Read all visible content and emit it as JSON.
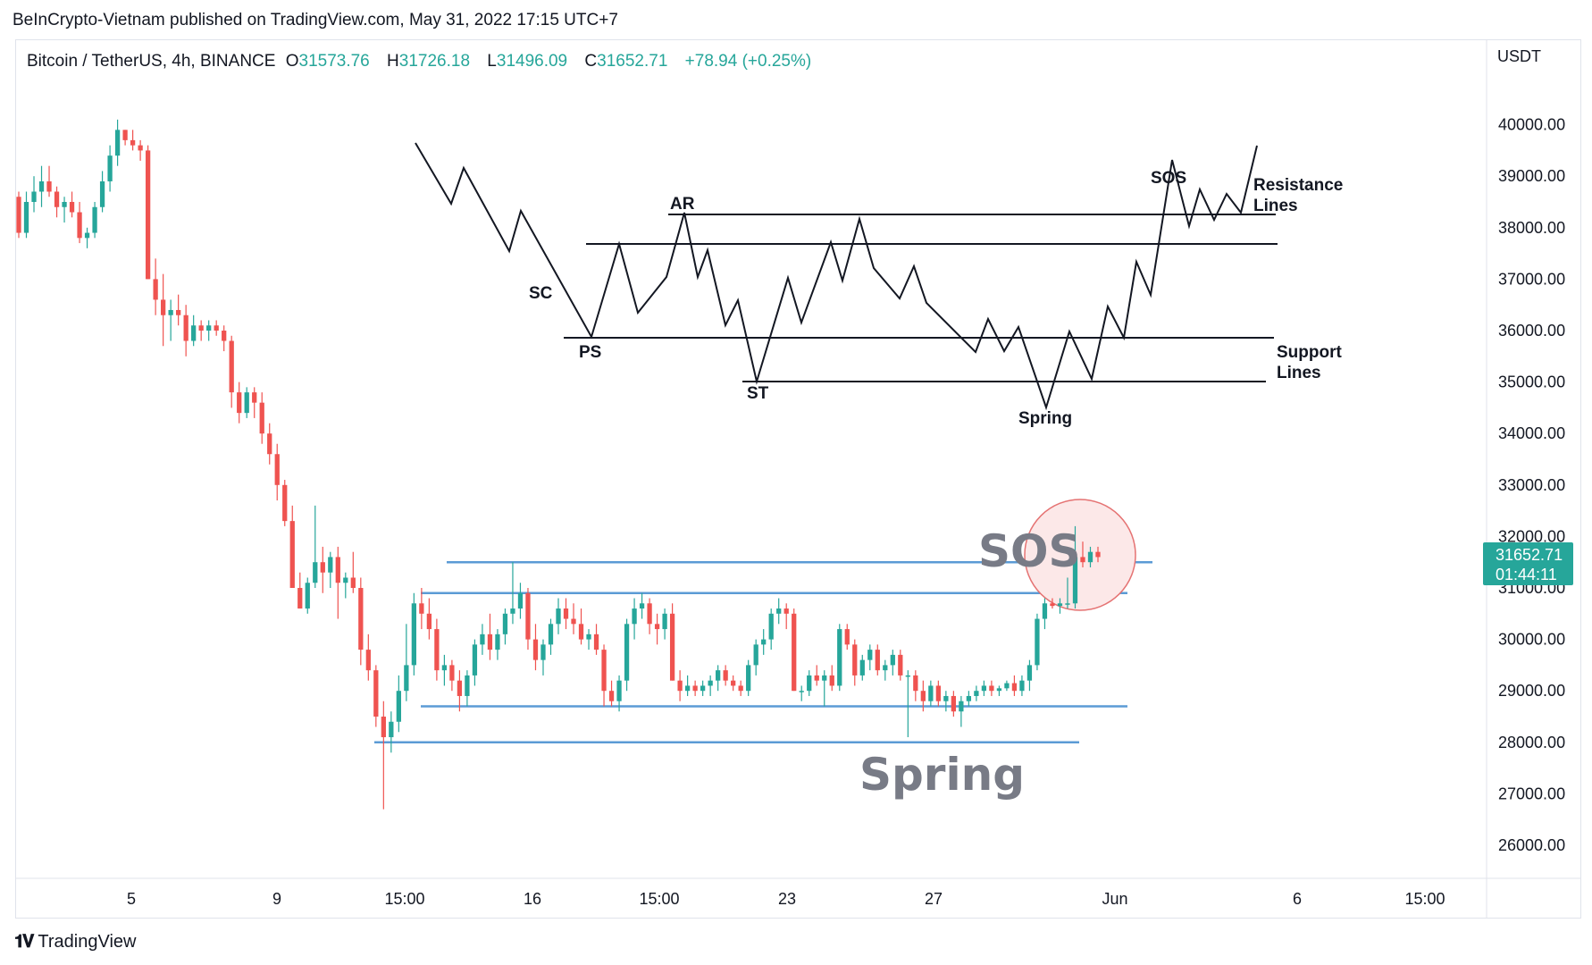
{
  "publisher": "BeInCrypto-Vietnam published on TradingView.com, May 31, 2022 17:15 UTC+7",
  "legend": {
    "symbol": "Bitcoin / TetherUS, 4h, BINANCE",
    "open_label": "O",
    "open": "31573.76",
    "high_label": "H",
    "high": "31726.18",
    "low_label": "L",
    "low": "31496.09",
    "close_label": "C",
    "close": "31652.71",
    "change": "+78.94 (+0.25%)"
  },
  "currency": "USDT",
  "price_tag": {
    "price": "31652.71",
    "countdown": "01:44:11"
  },
  "footer": {
    "brand": "TradingView",
    "logo": "tradingview-logo-icon"
  },
  "colors": {
    "up": "#26a69a",
    "down": "#ef5350",
    "range_line": "#5b9bd5",
    "circle_fill": "#fce8e8",
    "circle_stroke": "#e57373",
    "tag": "#26a69a"
  },
  "chart_data": {
    "type": "candlestick",
    "y_ticks": [
      "26000.00",
      "27000.00",
      "28000.00",
      "29000.00",
      "30000.00",
      "31000.00",
      "32000.00",
      "33000.00",
      "34000.00",
      "35000.00",
      "36000.00",
      "37000.00",
      "38000.00",
      "39000.00",
      "40000.00"
    ],
    "x_ticks": [
      "5",
      "9",
      "15:00",
      "16",
      "15:00",
      "23",
      "27",
      "Jun",
      "6",
      "15:00"
    ],
    "ylim": [
      25400,
      41100
    ],
    "candles_ohlc": [
      [
        38600,
        38700,
        37800,
        37900
      ],
      [
        37900,
        38700,
        37800,
        38500
      ],
      [
        38500,
        39000,
        38300,
        38700
      ],
      [
        38700,
        39200,
        38400,
        38900
      ],
      [
        38900,
        39200,
        38600,
        38700
      ],
      [
        38700,
        38800,
        38200,
        38400
      ],
      [
        38400,
        38600,
        38100,
        38500
      ],
      [
        38500,
        38700,
        38200,
        38300
      ],
      [
        38300,
        38500,
        37700,
        37800
      ],
      [
        37800,
        38000,
        37600,
        37900
      ],
      [
        37900,
        38500,
        37800,
        38400
      ],
      [
        38400,
        39100,
        38300,
        38900
      ],
      [
        38900,
        39600,
        38700,
        39400
      ],
      [
        39400,
        40100,
        39200,
        39900
      ],
      [
        39900,
        39900,
        39600,
        39700
      ],
      [
        39700,
        39900,
        39500,
        39600
      ],
      [
        39600,
        39700,
        39300,
        39500
      ],
      [
        39500,
        39600,
        37000,
        37000
      ],
      [
        37000,
        37400,
        36300,
        36600
      ],
      [
        36600,
        37100,
        35700,
        36300
      ],
      [
        36300,
        36600,
        35800,
        36400
      ],
      [
        36400,
        36700,
        36100,
        36300
      ],
      [
        36300,
        36500,
        35500,
        35800
      ],
      [
        35800,
        36300,
        35700,
        36100
      ],
      [
        36100,
        36200,
        35800,
        36000
      ],
      [
        36000,
        36200,
        35800,
        36100
      ],
      [
        36100,
        36200,
        35900,
        36000
      ],
      [
        36000,
        36100,
        35600,
        35800
      ],
      [
        35800,
        35900,
        34500,
        34800
      ],
      [
        34800,
        35000,
        34200,
        34400
      ],
      [
        34400,
        34900,
        34300,
        34800
      ],
      [
        34800,
        34900,
        34300,
        34600
      ],
      [
        34600,
        34800,
        33800,
        34000
      ],
      [
        34000,
        34200,
        33400,
        33600
      ],
      [
        33600,
        33800,
        32700,
        33000
      ],
      [
        33000,
        33100,
        32200,
        32300
      ],
      [
        32300,
        32600,
        31000,
        31000
      ],
      [
        31000,
        31300,
        30600,
        30600
      ],
      [
        30600,
        31200,
        30500,
        31100
      ],
      [
        31100,
        32600,
        31000,
        31500
      ],
      [
        31500,
        31800,
        30900,
        31300
      ],
      [
        31300,
        31700,
        31000,
        31600
      ],
      [
        31600,
        31800,
        30400,
        31100
      ],
      [
        31100,
        31300,
        30800,
        31200
      ],
      [
        31200,
        31700,
        30900,
        31000
      ],
      [
        31000,
        31200,
        29500,
        29800
      ],
      [
        29800,
        30100,
        29200,
        29400
      ],
      [
        29400,
        29500,
        28300,
        28500
      ],
      [
        28500,
        28800,
        26700,
        28100
      ],
      [
        28100,
        28600,
        27800,
        28400
      ],
      [
        28400,
        29300,
        28200,
        29000
      ],
      [
        29000,
        30300,
        28800,
        29500
      ],
      [
        29500,
        30900,
        29300,
        30700
      ],
      [
        30700,
        31000,
        30200,
        30500
      ],
      [
        30500,
        30800,
        30000,
        30200
      ],
      [
        30200,
        30400,
        29200,
        29400
      ],
      [
        29400,
        29700,
        29100,
        29500
      ],
      [
        29500,
        29600,
        29000,
        29200
      ],
      [
        29200,
        29400,
        28600,
        28900
      ],
      [
        28900,
        29400,
        28700,
        29300
      ],
      [
        29300,
        30000,
        29100,
        29900
      ],
      [
        29900,
        30300,
        29700,
        30100
      ],
      [
        30100,
        30500,
        29600,
        29800
      ],
      [
        29800,
        30200,
        29600,
        30100
      ],
      [
        30100,
        30600,
        29900,
        30500
      ],
      [
        30500,
        31500,
        30300,
        30600
      ],
      [
        30600,
        31100,
        30400,
        30900
      ],
      [
        30900,
        31000,
        29800,
        30000
      ],
      [
        30000,
        30300,
        29400,
        29600
      ],
      [
        29600,
        30000,
        29300,
        29900
      ],
      [
        29900,
        30400,
        29700,
        30300
      ],
      [
        30300,
        30800,
        30100,
        30600
      ],
      [
        30600,
        30800,
        30200,
        30400
      ],
      [
        30400,
        30700,
        30100,
        30300
      ],
      [
        30300,
        30600,
        29900,
        30000
      ],
      [
        30000,
        30200,
        29800,
        30100
      ],
      [
        30100,
        30300,
        29700,
        29800
      ],
      [
        29800,
        29900,
        28700,
        29000
      ],
      [
        29000,
        29200,
        28700,
        28800
      ],
      [
        28800,
        29300,
        28600,
        29200
      ],
      [
        29200,
        30400,
        29000,
        30300
      ],
      [
        30300,
        30800,
        30000,
        30600
      ],
      [
        30600,
        30900,
        30400,
        30700
      ],
      [
        30700,
        30800,
        30100,
        30300
      ],
      [
        30300,
        30500,
        29900,
        30200
      ],
      [
        30200,
        30600,
        30000,
        30500
      ],
      [
        30500,
        30700,
        29200,
        29200
      ],
      [
        29200,
        29400,
        28800,
        29000
      ],
      [
        29000,
        29300,
        28900,
        29100
      ],
      [
        29100,
        29200,
        28900,
        29000
      ],
      [
        29000,
        29200,
        28900,
        29100
      ],
      [
        29100,
        29300,
        28900,
        29200
      ],
      [
        29200,
        29500,
        29000,
        29400
      ],
      [
        29400,
        29500,
        29100,
        29200
      ],
      [
        29200,
        29300,
        29000,
        29100
      ],
      [
        29100,
        29200,
        28900,
        29000
      ],
      [
        29000,
        29600,
        28900,
        29500
      ],
      [
        29500,
        30000,
        29300,
        29900
      ],
      [
        29900,
        30200,
        29700,
        30000
      ],
      [
        30000,
        30600,
        29800,
        30500
      ],
      [
        30500,
        30800,
        30300,
        30600
      ],
      [
        30600,
        30700,
        30200,
        30500
      ],
      [
        30500,
        30600,
        29000,
        29000
      ],
      [
        29000,
        29100,
        28800,
        29000
      ],
      [
        29000,
        29400,
        28900,
        29300
      ],
      [
        29300,
        29500,
        29100,
        29200
      ],
      [
        29200,
        29400,
        28700,
        29300
      ],
      [
        29300,
        29500,
        29000,
        29100
      ],
      [
        29100,
        30300,
        29000,
        30200
      ],
      [
        30200,
        30300,
        29800,
        29900
      ],
      [
        29900,
        30000,
        29100,
        29300
      ],
      [
        29300,
        29700,
        29200,
        29600
      ],
      [
        29600,
        29900,
        29400,
        29800
      ],
      [
        29800,
        29900,
        29300,
        29400
      ],
      [
        29400,
        29600,
        29200,
        29500
      ],
      [
        29500,
        29800,
        29300,
        29700
      ],
      [
        29700,
        29800,
        29200,
        29300
      ],
      [
        29300,
        29400,
        28100,
        29300
      ],
      [
        29300,
        29400,
        28800,
        29000
      ],
      [
        29000,
        29200,
        28600,
        28800
      ],
      [
        28800,
        29200,
        28700,
        29100
      ],
      [
        29100,
        29200,
        28700,
        28800
      ],
      [
        28800,
        29000,
        28600,
        28900
      ],
      [
        28900,
        29000,
        28500,
        28600
      ],
      [
        28600,
        28900,
        28300,
        28800
      ],
      [
        28800,
        29000,
        28700,
        28900
      ],
      [
        28900,
        29100,
        28800,
        29000
      ],
      [
        29000,
        29200,
        28900,
        29100
      ],
      [
        29100,
        29200,
        28900,
        29000
      ],
      [
        29000,
        29100,
        28900,
        29050
      ],
      [
        29050,
        29200,
        29000,
        29150
      ],
      [
        29150,
        29300,
        28900,
        29000
      ],
      [
        29000,
        29300,
        28900,
        29200
      ],
      [
        29200,
        29600,
        29000,
        29500
      ],
      [
        29500,
        30500,
        29400,
        30400
      ],
      [
        30400,
        30800,
        30200,
        30700
      ],
      [
        30700,
        30800,
        30600,
        30650
      ],
      [
        30650,
        30800,
        30500,
        30700
      ],
      [
        30700,
        31200,
        30600,
        30700
      ],
      [
        30700,
        32200,
        30600,
        31600
      ],
      [
        31600,
        31900,
        31400,
        31500
      ],
      [
        31500,
        31800,
        31400,
        31700
      ],
      [
        31700,
        31800,
        31500,
        31600
      ]
    ],
    "range_lines": [
      31500,
      30900,
      28700,
      28000
    ],
    "annotations": [
      "SOS",
      "Spring"
    ],
    "schematic": {
      "labels": [
        "SC",
        "AR",
        "PS",
        "ST",
        "Spring",
        "SOS",
        "Resistance\nLines",
        "Support\nLines"
      ]
    }
  }
}
